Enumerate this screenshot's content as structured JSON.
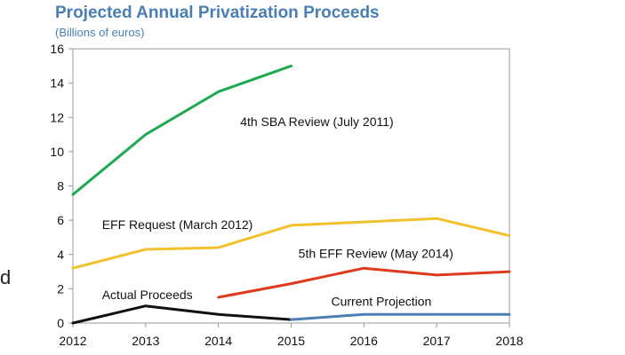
{
  "chart_data": {
    "type": "line",
    "title": "Projected Annual Privatization Proceeds",
    "subtitle": "(Billions of euros)",
    "xlabel": "",
    "ylabel": "",
    "x": [
      2012,
      2013,
      2014,
      2015,
      2016,
      2017,
      2018
    ],
    "ylim": [
      0,
      16
    ],
    "yticks": [
      0,
      2,
      4,
      6,
      8,
      10,
      12,
      14,
      16
    ],
    "grid": false,
    "series": [
      {
        "name": "4th SBA Review (July 2011)",
        "color": "#1faa50",
        "points": [
          [
            2012,
            7.5
          ],
          [
            2013,
            11.0
          ],
          [
            2014,
            13.5
          ],
          [
            2015,
            15.0
          ]
        ]
      },
      {
        "name": "EFF Request (March 2012)",
        "color": "#f2c12e",
        "points": [
          [
            2012,
            3.2
          ],
          [
            2013,
            4.3
          ],
          [
            2014,
            4.4
          ],
          [
            2015,
            5.7
          ],
          [
            2016,
            5.9
          ],
          [
            2017,
            6.1
          ],
          [
            2018,
            5.1
          ]
        ]
      },
      {
        "name": "5th EFF Review (May 2014)",
        "color": "#e03a1e",
        "points": [
          [
            2014,
            1.5
          ],
          [
            2015,
            2.3
          ],
          [
            2016,
            3.2
          ],
          [
            2017,
            2.8
          ],
          [
            2018,
            3.0
          ]
        ]
      },
      {
        "name": "Actual Proceeds",
        "color": "#111111",
        "points": [
          [
            2012,
            0.0
          ],
          [
            2013,
            1.0
          ],
          [
            2014,
            0.5
          ],
          [
            2015,
            0.2
          ]
        ]
      },
      {
        "name": "Current Projection",
        "color": "#4a7fb5",
        "points": [
          [
            2015,
            0.2
          ],
          [
            2016,
            0.5
          ],
          [
            2017,
            0.5
          ],
          [
            2018,
            0.5
          ]
        ]
      }
    ],
    "annotations": [
      {
        "text": "4th SBA Review (July 2011)",
        "x": 2014.3,
        "y": 11.5
      },
      {
        "text": "EFF Request (March 2012)",
        "x": 2012.4,
        "y": 5.5
      },
      {
        "text": "5th EFF Review (May 2014)",
        "x": 2015.1,
        "y": 3.8
      },
      {
        "text": "Actual Proceeds",
        "x": 2012.4,
        "y": 1.4
      },
      {
        "text": "Current Projection",
        "x": 2015.55,
        "y": 1.0
      }
    ]
  },
  "stray_text": "d"
}
